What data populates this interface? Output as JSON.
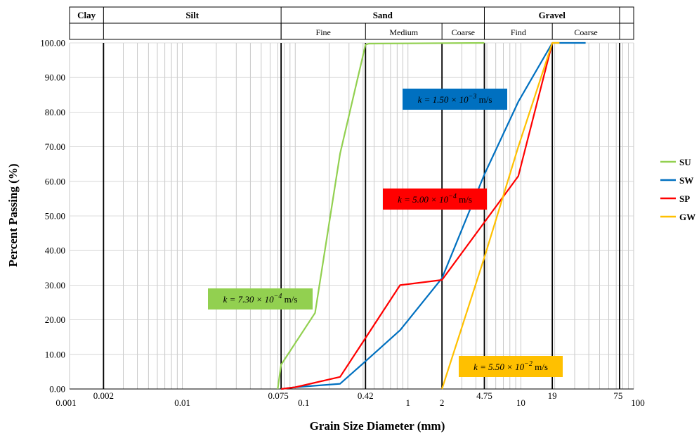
{
  "chart_data": {
    "type": "line",
    "xlabel": "Grain Size Diameter (mm)",
    "ylabel": "Percent Passing (%)",
    "xscale": "log",
    "xlim": [
      0.001,
      100
    ],
    "ylim": [
      0,
      100
    ],
    "y_ticks": [
      0,
      10,
      20,
      30,
      40,
      50,
      60,
      70,
      80,
      90,
      100
    ],
    "y_tick_labels": [
      "0.00",
      "10.00",
      "20.00",
      "30.00",
      "40.00",
      "50.00",
      "60.00",
      "70.00",
      "80.00",
      "90.00",
      "100.00"
    ],
    "x_ticks": [
      {
        "value": 0.001,
        "label": "0.001"
      },
      {
        "value": 0.002,
        "label": "0.002"
      },
      {
        "value": 0.01,
        "label": "0.01"
      },
      {
        "value": 0.075,
        "label": "0.075"
      },
      {
        "value": 0.1,
        "label": "0.1"
      },
      {
        "value": 0.42,
        "label": "0.42"
      },
      {
        "value": 1,
        "label": "1"
      },
      {
        "value": 2,
        "label": "2"
      },
      {
        "value": 4.75,
        "label": "4.75"
      },
      {
        "value": 10,
        "label": "10"
      },
      {
        "value": 19,
        "label": "19"
      },
      {
        "value": 75,
        "label": "75"
      },
      {
        "value": 100,
        "label": "100"
      }
    ],
    "boundaries": [
      0.002,
      0.075,
      0.42,
      2,
      4.75,
      19,
      75
    ],
    "grid": true,
    "legend_position": "right",
    "soil_bands": {
      "major": [
        {
          "label": "Clay",
          "from": 0.001,
          "to": 0.002
        },
        {
          "label": "Silt",
          "from": 0.002,
          "to": 0.075
        },
        {
          "label": "Sand",
          "from": 0.075,
          "to": 4.75
        },
        {
          "label": "Gravel",
          "from": 4.75,
          "to": 75
        }
      ],
      "minor": [
        {
          "label": "Fine",
          "from": 0.075,
          "to": 0.42
        },
        {
          "label": "Medium",
          "from": 0.42,
          "to": 2
        },
        {
          "label": "Coarse",
          "from": 2,
          "to": 4.75
        },
        {
          "label": "Find",
          "from": 4.75,
          "to": 19
        },
        {
          "label": "Coarse",
          "from": 19,
          "to": 75
        }
      ]
    },
    "series": [
      {
        "name": "SU",
        "color": "#92d050",
        "points": [
          [
            0.07,
            0
          ],
          [
            0.075,
            7
          ],
          [
            0.15,
            22
          ],
          [
            0.25,
            68
          ],
          [
            0.42,
            99.5
          ],
          [
            0.45,
            99.8
          ],
          [
            4.75,
            100
          ]
        ]
      },
      {
        "name": "SW",
        "color": "#0070c0",
        "points": [
          [
            0.075,
            0
          ],
          [
            0.1,
            0.5
          ],
          [
            0.25,
            1.5
          ],
          [
            0.42,
            8
          ],
          [
            0.85,
            17
          ],
          [
            2,
            32
          ],
          [
            4.75,
            62
          ],
          [
            9.5,
            83
          ],
          [
            19,
            100
          ],
          [
            37.5,
            100
          ]
        ]
      },
      {
        "name": "SP",
        "color": "#ff0000",
        "points": [
          [
            0.075,
            0
          ],
          [
            0.1,
            0.5
          ],
          [
            0.25,
            3.5
          ],
          [
            0.85,
            30
          ],
          [
            2,
            31.5
          ],
          [
            9.5,
            61.5
          ],
          [
            19,
            100
          ]
        ]
      },
      {
        "name": "GW",
        "color": "#ffc000",
        "points": [
          [
            2,
            0
          ],
          [
            4.75,
            38
          ],
          [
            9.5,
            70
          ],
          [
            19,
            100
          ],
          [
            22,
            100
          ]
        ]
      }
    ],
    "annotations": [
      {
        "text": "k = 1.50 × 10",
        "exp": "−3",
        "unit": " m/s",
        "bg": "#0070c0",
        "color": "#000000"
      },
      {
        "text": "k = 5.00 × 10",
        "exp": "−4",
        "unit": " m/s",
        "bg": "#ff0000",
        "color": "#000000"
      },
      {
        "text": "k = 7.30 × 10",
        "exp": "−4",
        "unit": " m/s",
        "bg": "#92d050",
        "color": "#000000"
      },
      {
        "text": "k = 5.50 × 10",
        "exp": "−2",
        "unit": " m/s",
        "bg": "#ffc000",
        "color": "#000000"
      }
    ]
  }
}
